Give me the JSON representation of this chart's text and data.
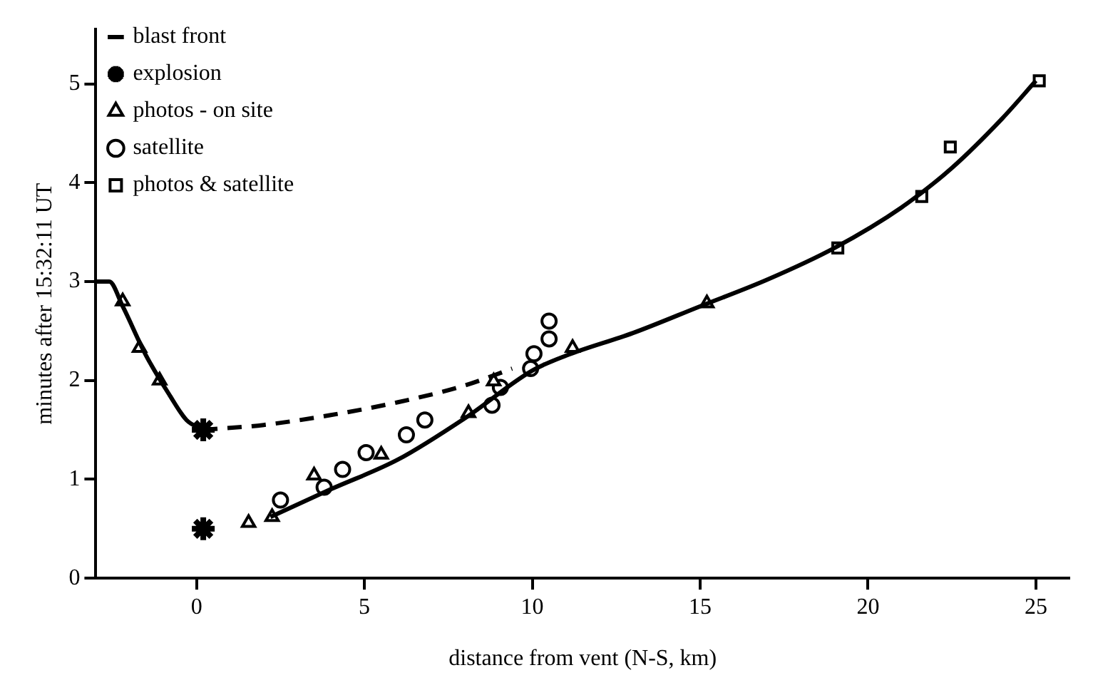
{
  "chart_data": {
    "type": "scatter",
    "xlabel": "distance from vent (N-S, km)",
    "ylabel": "minutes after 15:32:11 UT",
    "xlim": [
      -3,
      26
    ],
    "ylim": [
      0,
      5.55
    ],
    "xticks": [
      0,
      5,
      10,
      15,
      20,
      25
    ],
    "yticks": [
      0,
      1,
      2,
      3,
      4,
      5
    ],
    "grid": false,
    "legend": "top left",
    "series": [
      {
        "name": "blast front",
        "type": "line",
        "color": "#000000",
        "marker": "none",
        "line_style": "solid",
        "x": [
          -3,
          -2.6,
          -2.2,
          -1.5,
          -0.8,
          -0.3,
          0.2,
          null,
          2.2,
          4,
          6,
          8,
          10,
          11,
          13,
          15,
          17,
          19,
          21,
          22.5,
          24,
          25
        ],
        "values": [
          3,
          3,
          2.75,
          2.25,
          1.85,
          1.6,
          1.5,
          null,
          0.62,
          0.9,
          1.2,
          1.62,
          2.1,
          2.25,
          2.48,
          2.75,
          3.02,
          3.34,
          3.75,
          4.15,
          4.65,
          5.03
        ]
      },
      {
        "type": "line",
        "color": "#000000",
        "marker": "none",
        "line_style": "dashed",
        "x": [
          0.2,
          2,
          4,
          6,
          8,
          9.4
        ],
        "values": [
          1.5,
          1.55,
          1.65,
          1.78,
          1.95,
          2.12
        ]
      },
      {
        "name": "explosion",
        "color": "#000000",
        "x": [
          0.2,
          0.2
        ],
        "values": [
          1.5,
          0.5
        ]
      },
      {
        "name": "photos - on site",
        "color": "#000000",
        "marker": "triangle",
        "x": [
          -2.2,
          -1.7,
          -1.1,
          1.55,
          2.25,
          3.5,
          5.5,
          8.1,
          8.85,
          11.2,
          15.2
        ],
        "values": [
          2.8,
          2.33,
          2.0,
          0.56,
          0.62,
          1.04,
          1.25,
          1.67,
          1.99,
          2.33,
          2.78
        ]
      },
      {
        "name": "satellite",
        "color": "#000000",
        "marker": "circle",
        "x": [
          2.5,
          3.8,
          4.35,
          5.05,
          6.25,
          6.8,
          8.8,
          9.05,
          9.95,
          10.05,
          10.5,
          10.5
        ],
        "values": [
          0.79,
          0.92,
          1.1,
          1.27,
          1.45,
          1.6,
          1.75,
          1.93,
          2.12,
          2.27,
          2.42,
          2.6
        ]
      },
      {
        "name": "photos & satellite",
        "color": "#000000",
        "marker": "square",
        "x": [
          19.1,
          21.6,
          22.45,
          25.1
        ],
        "values": [
          3.34,
          3.86,
          4.36,
          5.03
        ]
      }
    ]
  }
}
